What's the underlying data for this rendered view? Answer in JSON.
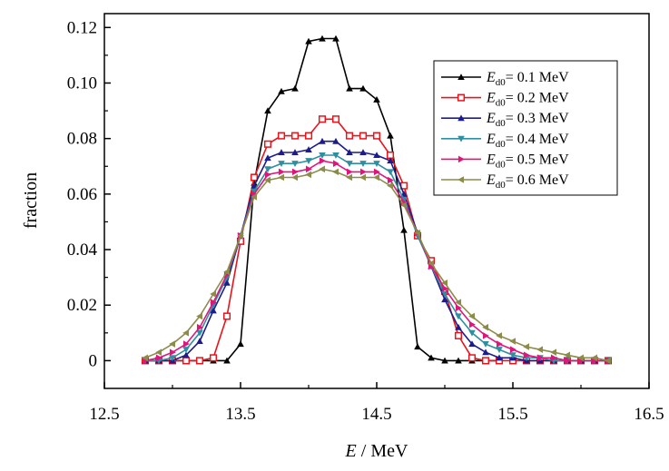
{
  "chart_data": {
    "type": "line",
    "xlabel_italic": "E",
    "xlabel_rest": " / MeV",
    "ylabel": "fraction",
    "xlim": [
      12.5,
      16.5
    ],
    "ylim": [
      -0.01,
      0.125
    ],
    "x_ticks": [
      12.5,
      13.5,
      14.5,
      15.5,
      16.5
    ],
    "x_tick_labels": [
      "12.5",
      "13.5",
      "14.5",
      "15.5",
      "16.5"
    ],
    "y_ticks": [
      0,
      0.02,
      0.04,
      0.06,
      0.08,
      0.1,
      0.12
    ],
    "y_tick_labels": [
      "0",
      "0.02",
      "0.04",
      "0.06",
      "0.08",
      "0.10",
      "0.12"
    ],
    "grid": false,
    "legend_position": "top-right",
    "legend_italic": "E",
    "legend_sub": "d0",
    "x": [
      12.8,
      12.9,
      13.0,
      13.1,
      13.2,
      13.3,
      13.4,
      13.5,
      13.6,
      13.7,
      13.8,
      13.9,
      14.0,
      14.1,
      14.2,
      14.3,
      14.4,
      14.5,
      14.6,
      14.7,
      14.8,
      14.9,
      15.0,
      15.1,
      15.2,
      15.3,
      15.4,
      15.5,
      15.6,
      15.7,
      15.8,
      15.9,
      16.0,
      16.1,
      16.2
    ],
    "series": [
      {
        "name": "= 0.1 MeV",
        "color": "#000000",
        "marker": "triangle-up",
        "values": [
          0,
          0,
          0,
          0,
          0,
          0,
          0,
          0.006,
          0.064,
          0.09,
          0.097,
          0.098,
          0.115,
          0.116,
          0.116,
          0.098,
          0.098,
          0.094,
          0.081,
          0.047,
          0.005,
          0.001,
          0.0,
          0.0,
          0.0,
          0.0,
          0.0,
          null,
          null,
          null,
          null,
          null,
          null,
          null,
          null
        ]
      },
      {
        "name": "= 0.2 MeV",
        "color": "#e8141c",
        "marker": "square",
        "values": [
          0,
          0,
          0,
          0,
          0,
          0.001,
          0.016,
          0.043,
          0.066,
          0.078,
          0.081,
          0.081,
          0.081,
          0.087,
          0.087,
          0.081,
          0.081,
          0.081,
          0.074,
          0.063,
          0.045,
          0.036,
          0.025,
          0.009,
          0.001,
          0.0,
          0.0,
          0.0,
          0.0,
          0.0,
          0.0,
          0.0,
          0.0,
          0.0,
          0.0
        ]
      },
      {
        "name": "= 0.3 MeV",
        "color": "#1c1c8c",
        "marker": "triangle-up",
        "values": [
          0,
          0,
          0,
          0.002,
          0.007,
          0.018,
          0.028,
          0.045,
          0.063,
          0.073,
          0.075,
          0.075,
          0.076,
          0.079,
          0.079,
          0.075,
          0.075,
          0.074,
          0.072,
          0.06,
          0.046,
          0.034,
          0.022,
          0.012,
          0.006,
          0.003,
          0.001,
          0.001,
          0.0,
          0.0,
          0.0,
          0.0,
          0.0,
          0.0,
          0.0
        ]
      },
      {
        "name": "= 0.4 MeV",
        "color": "#2e8fa0",
        "marker": "triangle-down",
        "values": [
          0,
          0,
          0.001,
          0.004,
          0.01,
          0.02,
          0.03,
          0.045,
          0.061,
          0.069,
          0.071,
          0.071,
          0.072,
          0.074,
          0.074,
          0.071,
          0.071,
          0.071,
          0.068,
          0.058,
          0.045,
          0.034,
          0.024,
          0.016,
          0.01,
          0.006,
          0.004,
          0.002,
          0.001,
          0.001,
          0.0,
          0.0,
          0.0,
          0.0,
          0.0
        ]
      },
      {
        "name": "= 0.5 MeV",
        "color": "#e0157c",
        "marker": "triangle-right",
        "values": [
          0,
          0.001,
          0.003,
          0.006,
          0.012,
          0.021,
          0.031,
          0.045,
          0.06,
          0.067,
          0.068,
          0.068,
          0.069,
          0.072,
          0.071,
          0.068,
          0.068,
          0.068,
          0.065,
          0.057,
          0.046,
          0.034,
          0.026,
          0.019,
          0.013,
          0.009,
          0.006,
          0.004,
          0.002,
          0.001,
          0.001,
          0.0,
          0.0,
          0.0,
          0.0
        ]
      },
      {
        "name": "= 0.6 MeV",
        "color": "#8c8c4a",
        "marker": "triangle-left",
        "values": [
          0.001,
          0.003,
          0.006,
          0.01,
          0.016,
          0.024,
          0.032,
          0.045,
          0.059,
          0.065,
          0.066,
          0.066,
          0.067,
          0.069,
          0.068,
          0.066,
          0.066,
          0.066,
          0.063,
          0.056,
          0.046,
          0.035,
          0.028,
          0.021,
          0.016,
          0.012,
          0.009,
          0.007,
          0.005,
          0.004,
          0.003,
          0.002,
          0.001,
          0.001,
          0.0
        ]
      }
    ]
  }
}
